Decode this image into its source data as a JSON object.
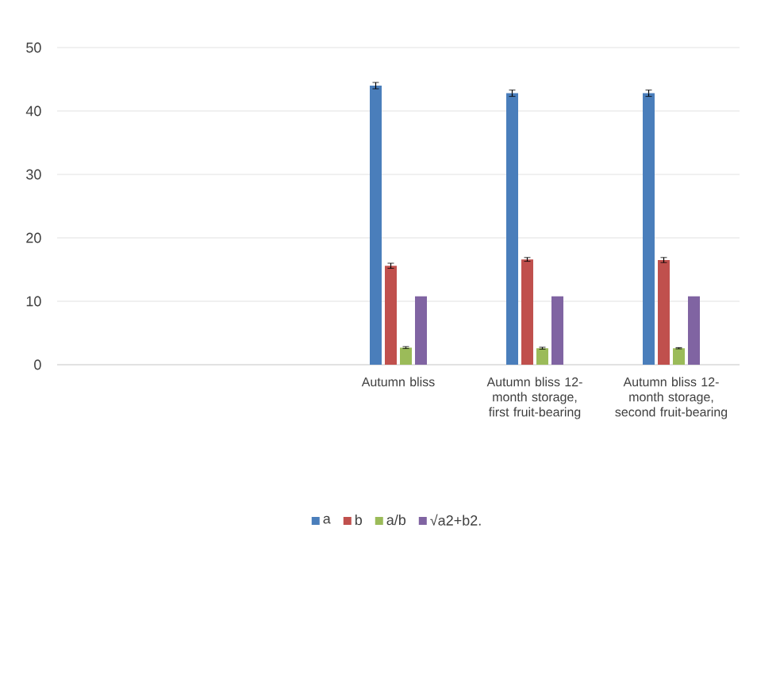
{
  "chart_data": {
    "type": "bar",
    "categories": [
      null,
      null,
      "Autumn bliss",
      "Autumn bliss 12-month storage, first fruit-bearing",
      "Autumn bliss 12-month storage, second fruit-bearing"
    ],
    "series": [
      {
        "name": "a",
        "color": "#4a7ebb",
        "values": [
          null,
          null,
          44.0,
          42.8,
          42.8
        ],
        "errors": [
          null,
          null,
          0.5,
          0.5,
          0.5
        ]
      },
      {
        "name": "b",
        "color": "#c0504d",
        "values": [
          null,
          null,
          15.6,
          16.6,
          16.5
        ],
        "errors": [
          null,
          null,
          0.4,
          0.3,
          0.4
        ]
      },
      {
        "name": "a/b",
        "color": "#9bbb59",
        "values": [
          null,
          null,
          2.7,
          2.6,
          2.6
        ],
        "errors": [
          null,
          null,
          0.15,
          0.15,
          0.1
        ]
      },
      {
        "name": "√a2+b2.",
        "color": "#8064a2",
        "values": [
          null,
          null,
          10.8,
          10.8,
          10.8
        ]
      }
    ],
    "ylim": [
      0,
      50
    ],
    "yticks": [
      0,
      10,
      20,
      30,
      40,
      50
    ],
    "grid": "y",
    "legend": "bottom"
  }
}
